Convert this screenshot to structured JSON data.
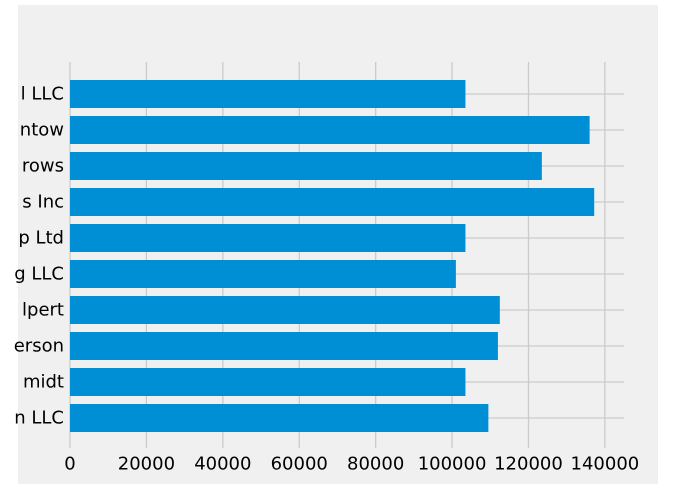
{
  "colors": {
    "figure_background": "#f0f0f0",
    "bar": "#008fd5",
    "grid": "#cbcbcb",
    "text": "#000000"
  },
  "chart_data": {
    "type": "bar",
    "orientation": "horizontal",
    "categories": [
      "l LLC",
      "ntow",
      "rows",
      "s Inc",
      "p Ltd",
      "g LLC",
      "lpert",
      "erson",
      "midt",
      "n LLC"
    ],
    "values": [
      103500,
      136000,
      123500,
      137200,
      103500,
      101000,
      112500,
      112000,
      103500,
      109500
    ],
    "xlim": [
      0,
      145000
    ],
    "xticks": [
      0,
      20000,
      40000,
      60000,
      80000,
      100000,
      120000,
      140000
    ],
    "xtick_labels": [
      "0",
      "20000",
      "40000",
      "60000",
      "80000",
      "100000",
      "120000",
      "140000"
    ],
    "grid": true,
    "title": "",
    "xlabel": "",
    "ylabel": ""
  }
}
